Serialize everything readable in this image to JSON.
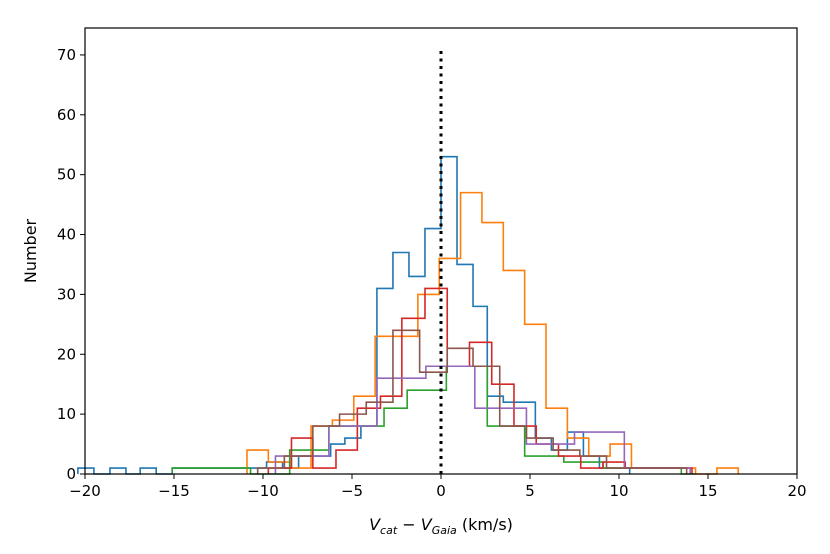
{
  "chart_data": {
    "type": "histogram-step",
    "title": "",
    "ylabel": "Number",
    "xlabel": {
      "v1": "V",
      "sub1": "cat",
      "minus": " − ",
      "v2": "V",
      "sub2": "Gaia",
      "unit": " (km/s)"
    },
    "xlim": [
      -20,
      20
    ],
    "ylim": [
      0,
      74.5
    ],
    "xticks": [
      -20,
      -15,
      -10,
      -5,
      0,
      5,
      10,
      15,
      20
    ],
    "yticks": [
      0,
      10,
      20,
      30,
      40,
      50,
      60,
      70
    ],
    "grid": false,
    "reference_line": {
      "x": 0,
      "ymax": 71,
      "style": "dotted",
      "color": "#000000"
    },
    "series": [
      {
        "name": "blue",
        "color": "#1f77b4",
        "edges": [
          -20.4,
          -19.5,
          -18.6,
          -17.7,
          -16.9,
          -16.0,
          -15.1,
          -14.2,
          -13.3,
          -12.4,
          -11.6,
          -10.7,
          -9.8,
          -8.9,
          -8.0,
          -7.1,
          -6.2,
          -5.4,
          -4.5,
          -3.6,
          -2.7,
          -1.8,
          -0.9,
          0.0,
          0.9,
          1.8,
          2.6,
          3.5,
          4.4,
          5.3,
          6.2,
          7.1,
          8.0,
          8.9,
          9.8,
          10.6
        ],
        "counts": [
          1,
          0,
          1,
          0,
          1,
          0,
          1,
          1,
          1,
          1,
          1,
          1,
          2,
          1,
          3,
          3,
          5,
          6,
          8,
          31,
          37,
          33,
          41,
          53,
          35,
          28,
          13,
          12,
          12,
          6,
          4,
          7,
          3,
          1,
          1
        ]
      },
      {
        "name": "orange",
        "color": "#ff7f0e",
        "edges": [
          -10.9,
          -9.7,
          -8.5,
          -7.3,
          -6.1,
          -4.9,
          -3.7,
          -2.5,
          -1.3,
          -0.1,
          1.1,
          2.3,
          3.5,
          4.7,
          5.9,
          7.1,
          8.3,
          9.5,
          10.7,
          11.9,
          13.1,
          14.3,
          15.5,
          16.7
        ],
        "counts": [
          4,
          2,
          1,
          8,
          9,
          13,
          23,
          23,
          30,
          36,
          47,
          42,
          34,
          25,
          11,
          6,
          3,
          5,
          1,
          1,
          1,
          0,
          1
        ]
      },
      {
        "name": "green",
        "color": "#2ca02c",
        "edges": [
          -15.1,
          -12.9,
          -10.7,
          -8.5,
          -6.3,
          -3.2,
          -1.9,
          0.3,
          2.6,
          4.7,
          6.9,
          9.1,
          11.3,
          13.5,
          14.3
        ],
        "counts": [
          1,
          1,
          0,
          4,
          8,
          11,
          14,
          18,
          8,
          3,
          2,
          1,
          1,
          0
        ]
      },
      {
        "name": "red",
        "color": "#d62728",
        "edges": [
          -9.7,
          -8.4,
          -7.2,
          -5.9,
          -4.7,
          -3.4,
          -2.2,
          -0.9,
          0.35,
          1.6,
          2.85,
          4.1,
          5.35,
          6.6,
          7.85,
          9.1,
          10.35,
          11.6,
          12.85,
          14.1
        ],
        "counts": [
          1,
          6,
          1,
          4,
          11,
          13,
          26,
          31,
          18,
          22,
          15,
          8,
          5,
          3,
          1,
          2,
          1,
          1,
          1
        ]
      },
      {
        "name": "purple",
        "color": "#9467bd",
        "edges": [
          -9.3,
          -8.0,
          -6.3,
          -3.6,
          -0.85,
          1.9,
          4.8,
          7.5,
          10.3,
          14.0
        ],
        "counts": [
          3,
          3,
          8,
          16,
          18,
          11,
          5,
          7,
          1
        ]
      },
      {
        "name": "brown",
        "color": "#8c564b",
        "edges": [
          -10.3,
          -8.8,
          -7.2,
          -5.7,
          -4.2,
          -2.7,
          -1.2,
          0.35,
          1.8,
          3.3,
          4.8,
          6.3,
          7.8,
          9.3,
          10.8,
          12.3,
          13.8
        ],
        "counts": [
          1,
          3,
          8,
          10,
          12,
          24,
          17,
          21,
          18,
          8,
          6,
          4,
          3,
          1,
          1,
          1
        ]
      }
    ]
  }
}
